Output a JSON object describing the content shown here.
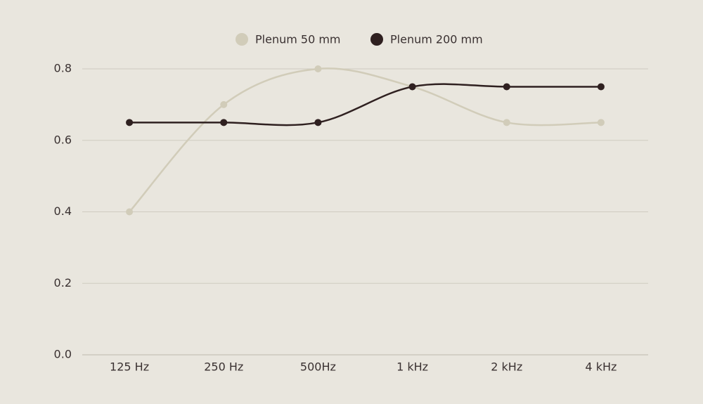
{
  "chart_data": {
    "type": "line",
    "categories": [
      "125 Hz",
      "250 Hz",
      "500Hz",
      "1 kHz",
      "2 kHz",
      "4 kHz"
    ],
    "series": [
      {
        "name": "Plenum 50 mm",
        "color": "#d1ccb9",
        "values": [
          0.4,
          0.7,
          0.8,
          0.75,
          0.65,
          0.65
        ]
      },
      {
        "name": "Plenum 200 mm",
        "color": "#2f2020",
        "values": [
          0.65,
          0.65,
          0.65,
          0.75,
          0.75,
          0.75
        ]
      }
    ],
    "ylim": [
      0,
      0.8
    ],
    "yticks": [
      {
        "value": 0,
        "label": "0.0"
      },
      0.2,
      0.4,
      0.6,
      0.8
    ],
    "grid": true,
    "legend": "top",
    "smooth": true
  }
}
